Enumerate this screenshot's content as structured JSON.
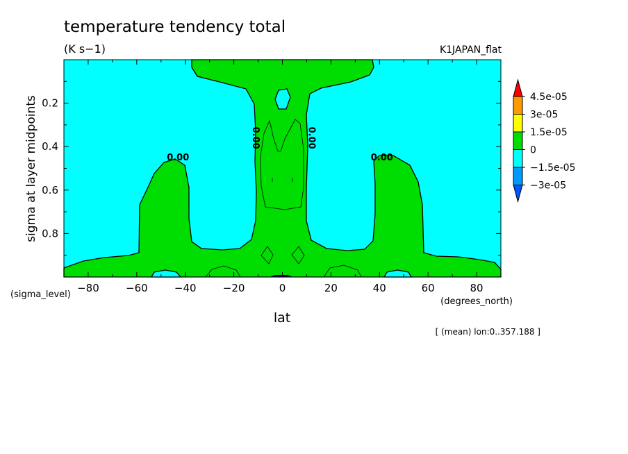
{
  "chart_data": {
    "type": "heatmap",
    "title": "temperature tendency total",
    "units": "(K s−1)",
    "dataset": "K1JAPAN_flat",
    "ylabel": "sigma at layer midpoints",
    "xlabel": "lat",
    "x_var_label": "(degrees_north)",
    "y_var_label": "(sigma_level)",
    "footnote": "[ (mean) lon:0..357.188 ]",
    "xlim": [
      -90,
      90
    ],
    "ylim": [
      1.0,
      0.0
    ],
    "x_ticks": [
      -80,
      -60,
      -40,
      -20,
      0,
      20,
      40,
      60,
      80
    ],
    "x_tick_labels": [
      "−80",
      "−60",
      "−40",
      "−20",
      "0",
      "20",
      "40",
      "60",
      "80"
    ],
    "y_ticks": [
      0.2,
      0.4,
      0.6,
      0.8
    ],
    "y_tick_labels": [
      "0.2",
      "0.4",
      "0.6",
      "0.8"
    ],
    "contour_label_text": "0.00",
    "contour_labels": [
      {
        "lat": -43,
        "sigma": 0.45
      },
      {
        "lat": -11,
        "sigma": 0.36
      },
      {
        "lat": 12,
        "sigma": 0.36
      },
      {
        "lat": 41,
        "sigma": 0.45
      }
    ],
    "colorbar": {
      "levels": [
        "4.5e-05",
        "3e-05",
        "1.5e-05",
        "0",
        "−1.5e-05",
        "−3e-05"
      ],
      "colors_top_to_bottom": [
        "#ff0000",
        "#ff9900",
        "#ffff00",
        "#00dd00",
        "#00ffff",
        "#0099ff",
        "#0055ff"
      ]
    },
    "field_colors": {
      "negative": "#00ffff",
      "positive": "#00dd00",
      "strong_negative": "#0000ff"
    }
  }
}
